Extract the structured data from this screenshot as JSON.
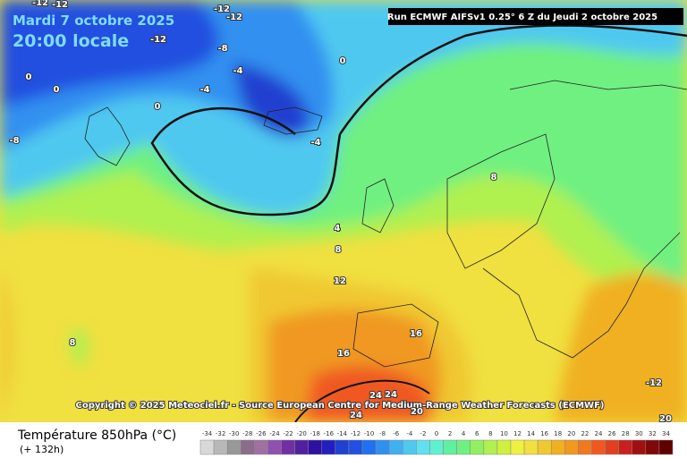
{
  "header": {
    "date": "Mardi 7 octobre 2025",
    "time": "20:00 locale",
    "run": "Run ECMWF AIFSv1 0.25° 6 Z du Jeudi 2 octobre 2025"
  },
  "copyright": "Copyright © 2025 Meteociel.fr - Source European Centre for Medium-Range Weather Forecasts (ECMWF)",
  "legend": {
    "title": "Température 850hPa (°C)",
    "lead": "(+ 132h)",
    "values": [
      -34,
      -32,
      -30,
      -28,
      -26,
      -24,
      -22,
      -20,
      -18,
      -16,
      -14,
      -12,
      -10,
      -8,
      -6,
      -4,
      -2,
      0,
      2,
      4,
      6,
      8,
      10,
      12,
      14,
      16,
      18,
      20,
      22,
      24,
      26,
      28,
      30,
      32,
      34
    ],
    "colors": [
      "#d8d8d8",
      "#b8b8b8",
      "#989898",
      "#8c6c8c",
      "#a070a0",
      "#9050b0",
      "#7030a0",
      "#5020a0",
      "#3010a0",
      "#2020c0",
      "#2040d0",
      "#2050e0",
      "#2070f0",
      "#3090f0",
      "#40b0f0",
      "#50c8f0",
      "#60e0f0",
      "#60f0d0",
      "#60f0a0",
      "#70f080",
      "#90f060",
      "#b0f050",
      "#d0f040",
      "#f0f040",
      "#f0e040",
      "#f0c830",
      "#f0b020",
      "#f09820",
      "#f07820",
      "#f05820",
      "#e04020",
      "#c82020",
      "#a01010",
      "#800808",
      "#600000"
    ]
  },
  "contour_labels": [
    -12,
    -12,
    -12,
    -12,
    -12,
    -8,
    -4,
    0,
    0,
    0,
    -4,
    0,
    -8,
    -4,
    4,
    8,
    12,
    8,
    8,
    16,
    16,
    24,
    24,
    24,
    20,
    -12,
    20
  ]
}
